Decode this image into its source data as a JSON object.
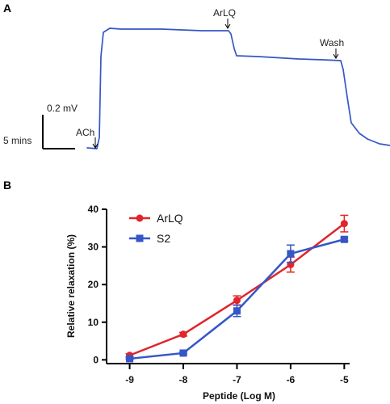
{
  "panel_a": {
    "label": "A",
    "scale_mv_label": "0.2 mV",
    "scale_time_label": "5 mins",
    "annotations": {
      "ach": "ACh",
      "arlq": "ArLQ",
      "wash": "Wash"
    },
    "trace_color": "#3556c6"
  },
  "panel_b": {
    "label": "B"
  },
  "chart_data": {
    "type": "line",
    "x": [
      -9,
      -8,
      -7,
      -6,
      -5
    ],
    "xlabel": "Peptide (Log M)",
    "ylabel": "Relative relaxation (%)",
    "xlim": [
      -9.4,
      -4.9
    ],
    "ylim": [
      -1,
      40
    ],
    "xticks": [
      -9,
      -8,
      -7,
      -6,
      -5
    ],
    "yticks": [
      0,
      10,
      20,
      30,
      40
    ],
    "grid": false,
    "legend": "top-left",
    "series": [
      {
        "name": "ArLQ",
        "color": "#e0252b",
        "marker": "circle",
        "values": [
          1.2,
          6.8,
          15.8,
          25.3,
          36.2
        ],
        "errors": [
          0.4,
          0.5,
          1.2,
          2.0,
          2.2
        ]
      },
      {
        "name": "S2",
        "color": "#3556c6",
        "marker": "square",
        "values": [
          0.3,
          1.8,
          13.0,
          28.2,
          32.0
        ],
        "errors": [
          0.2,
          0.3,
          1.5,
          2.3,
          0.4
        ]
      }
    ]
  }
}
